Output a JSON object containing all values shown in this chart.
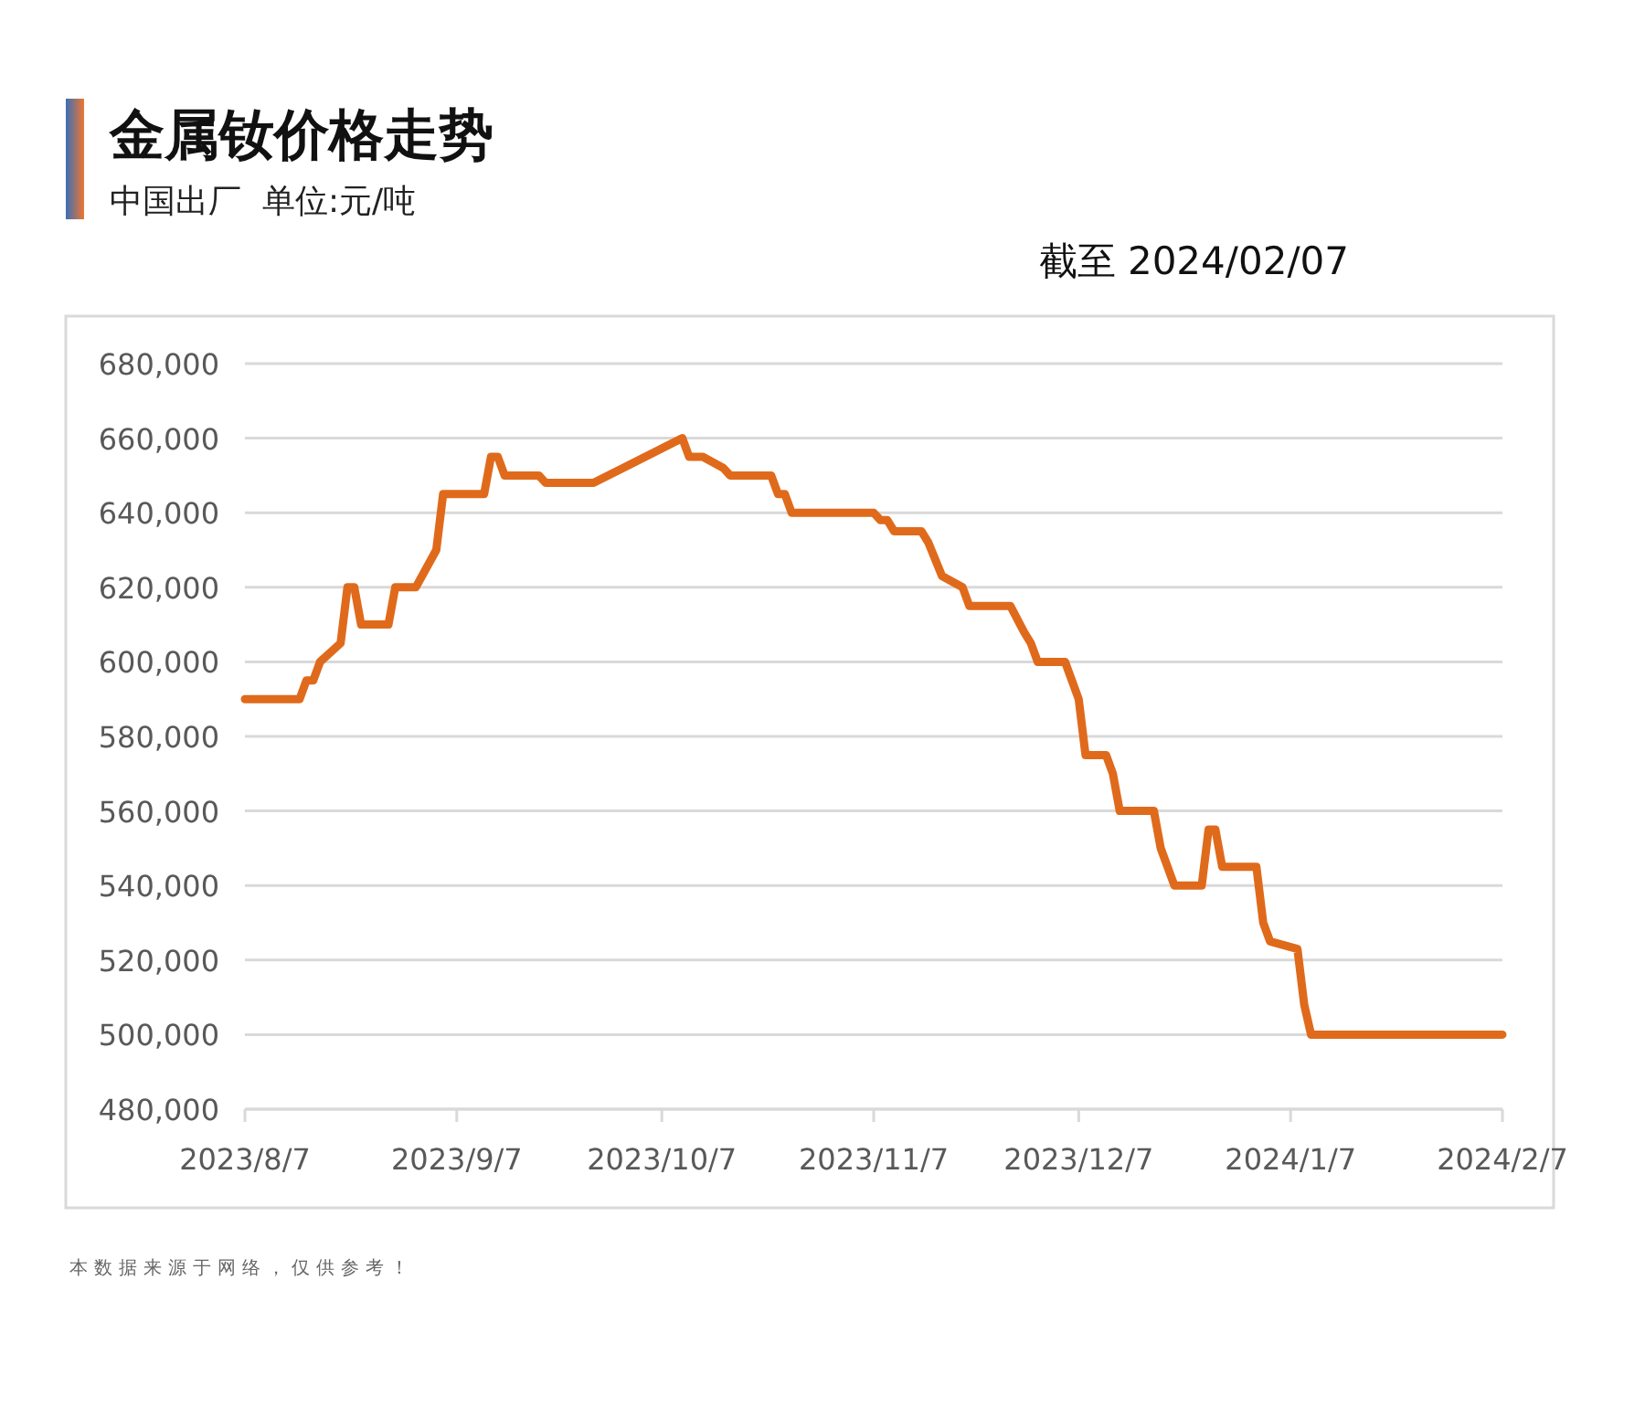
{
  "chart_data": {
    "type": "line",
    "title": "金属钕价格走势",
    "subtitle": "中国出厂  单位:元/吨",
    "annotations": [
      "截至 2024/02/07",
      "本数据来源于网络，仅供参考！"
    ],
    "x": [
      "2023-08-07",
      "2023-08-15",
      "2023-08-16",
      "2023-08-17",
      "2023-08-18",
      "2023-08-21",
      "2023-08-22",
      "2023-08-23",
      "2023-08-24",
      "2023-08-28",
      "2023-08-29",
      "2023-09-01",
      "2023-09-04",
      "2023-09-05",
      "2023-09-11",
      "2023-09-12",
      "2023-09-13",
      "2023-09-14",
      "2023-09-19",
      "2023-09-20",
      "2023-09-27",
      "2023-10-10",
      "2023-10-11",
      "2023-10-13",
      "2023-10-16",
      "2023-10-17",
      "2023-10-23",
      "2023-10-24",
      "2023-10-25",
      "2023-10-26",
      "2023-11-07",
      "2023-11-08",
      "2023-11-09",
      "2023-11-10",
      "2023-11-14",
      "2023-11-15",
      "2023-11-17",
      "2023-11-20",
      "2023-11-21",
      "2023-11-27",
      "2023-11-29",
      "2023-11-30",
      "2023-12-01",
      "2023-12-05",
      "2023-12-07",
      "2023-12-08",
      "2023-12-11",
      "2023-12-12",
      "2023-12-13",
      "2023-12-18",
      "2023-12-19",
      "2023-12-21",
      "2023-12-25",
      "2023-12-26",
      "2023-12-27",
      "2023-12-28",
      "2024-01-02",
      "2024-01-03",
      "2024-01-04",
      "2024-01-08",
      "2024-01-09",
      "2024-01-10",
      "2024-02-07"
    ],
    "values": [
      590000,
      590000,
      595000,
      595000,
      600000,
      605000,
      620000,
      620000,
      610000,
      610000,
      620000,
      620000,
      630000,
      645000,
      645000,
      655000,
      655000,
      650000,
      650000,
      648000,
      648000,
      660000,
      655000,
      655000,
      652000,
      650000,
      650000,
      645000,
      645000,
      640000,
      640000,
      638000,
      638000,
      635000,
      635000,
      632000,
      623000,
      620000,
      615000,
      615000,
      608000,
      605000,
      600000,
      600000,
      590000,
      575000,
      575000,
      570000,
      560000,
      560000,
      550000,
      540000,
      540000,
      555000,
      555000,
      545000,
      545000,
      530000,
      525000,
      523000,
      508000,
      500000,
      500000
    ],
    "color": "#e06a1b",
    "xlim": [
      "2023-08-07",
      "2024-02-07"
    ],
    "xticks": [
      {
        "value": "2023-08-07",
        "label": "2023/8/7"
      },
      {
        "value": "2023-09-07",
        "label": "2023/9/7"
      },
      {
        "value": "2023-10-07",
        "label": "2023/10/7"
      },
      {
        "value": "2023-11-07",
        "label": "2023/11/7"
      },
      {
        "value": "2023-12-07",
        "label": "2023/12/7"
      },
      {
        "value": "2024-01-07",
        "label": "2024/1/7"
      },
      {
        "value": "2024-02-07",
        "label": "2024/2/7"
      }
    ],
    "ylim": [
      480000,
      680000
    ],
    "yticks": [
      {
        "value": 480000,
        "label": "480,000"
      },
      {
        "value": 500000,
        "label": "500,000"
      },
      {
        "value": 520000,
        "label": "520,000"
      },
      {
        "value": 540000,
        "label": "540,000"
      },
      {
        "value": 560000,
        "label": "560,000"
      },
      {
        "value": 580000,
        "label": "580,000"
      },
      {
        "value": 600000,
        "label": "600,000"
      },
      {
        "value": 620000,
        "label": "620,000"
      },
      {
        "value": 640000,
        "label": "640,000"
      },
      {
        "value": 660000,
        "label": "660,000"
      },
      {
        "value": 680000,
        "label": "680,000"
      }
    ],
    "grid": "y"
  }
}
